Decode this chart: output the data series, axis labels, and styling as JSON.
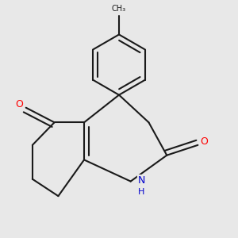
{
  "background_color": "#e8e8e8",
  "bond_color": "#1a1a1a",
  "bond_width": 1.5,
  "atom_colors": {
    "O": "#ff0000",
    "N": "#0000cc",
    "C": "#1a1a1a"
  },
  "xlim": [
    0.5,
    2.9
  ],
  "ylim": [
    0.3,
    2.9
  ],
  "figsize": [
    3.0,
    3.0
  ],
  "dpi": 100
}
